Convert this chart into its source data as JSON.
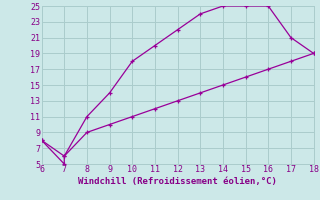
{
  "xlabel": "Windchill (Refroidissement éolien,°C)",
  "xlim": [
    6,
    18
  ],
  "ylim": [
    5,
    25
  ],
  "xticks": [
    6,
    7,
    8,
    9,
    10,
    11,
    12,
    13,
    14,
    15,
    16,
    17,
    18
  ],
  "yticks": [
    5,
    7,
    9,
    11,
    13,
    15,
    17,
    19,
    21,
    23,
    25
  ],
  "line1_x": [
    6,
    7,
    7,
    8,
    9,
    10,
    11,
    12,
    13,
    14,
    15,
    16,
    17,
    18
  ],
  "line1_y": [
    8,
    5,
    6,
    11,
    14,
    18,
    20,
    22,
    24,
    25,
    25,
    25,
    21,
    19
  ],
  "line2_x": [
    6,
    7,
    8,
    9,
    10,
    11,
    12,
    13,
    14,
    15,
    16,
    17,
    18
  ],
  "line2_y": [
    8,
    6,
    9,
    10,
    11,
    12,
    13,
    14,
    15,
    16,
    17,
    18,
    19
  ],
  "line_color": "#990099",
  "bg_color": "#cce8e8",
  "grid_color": "#aacccc",
  "text_color": "#880088",
  "marker": "+",
  "linewidth": 0.9,
  "fontsize_label": 6.5,
  "fontsize_tick": 6.0
}
